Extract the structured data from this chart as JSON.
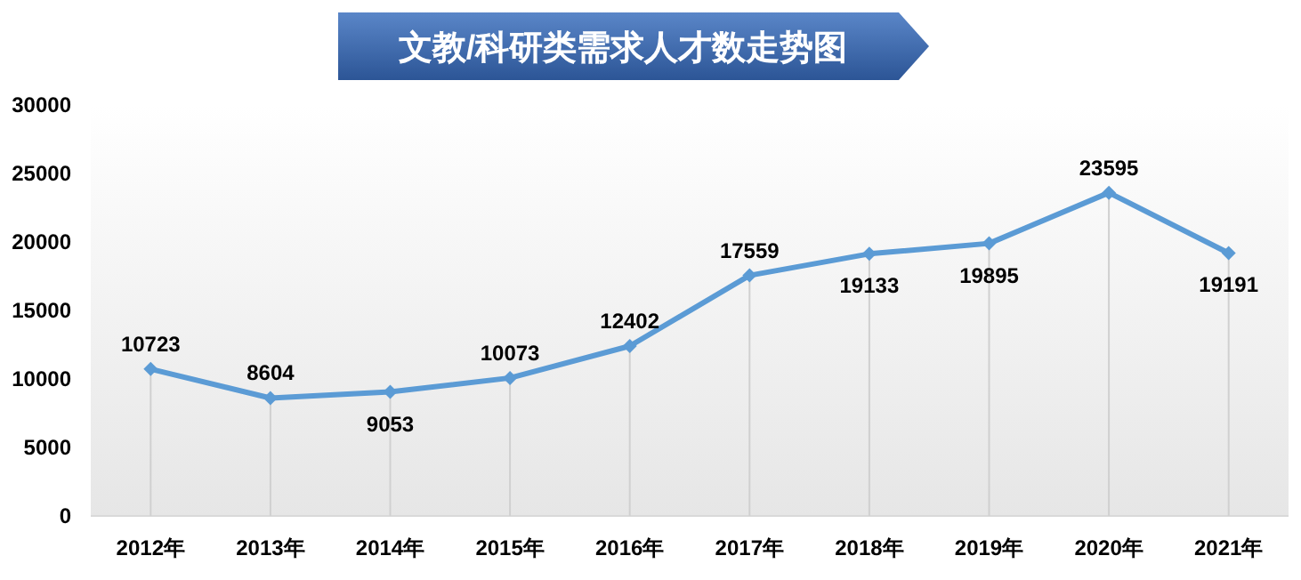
{
  "chart_data": {
    "type": "line",
    "title": "文教/科研类需求人才数走势图",
    "categories": [
      "2012年",
      "2013年",
      "2014年",
      "2015年",
      "2016年",
      "2017年",
      "2018年",
      "2019年",
      "2020年",
      "2021年"
    ],
    "series": [
      {
        "color": "#5b9bd5",
        "values": [
          10723,
          8604,
          9053,
          10073,
          12402,
          17559,
          19133,
          19895,
          23595,
          19191
        ]
      }
    ],
    "ylim": [
      0,
      30000
    ],
    "yticks": [
      0,
      5000,
      10000,
      15000,
      20000,
      25000,
      30000
    ],
    "data_labels": true,
    "grid": "x",
    "marker": "diamond",
    "line_style": "solid"
  }
}
